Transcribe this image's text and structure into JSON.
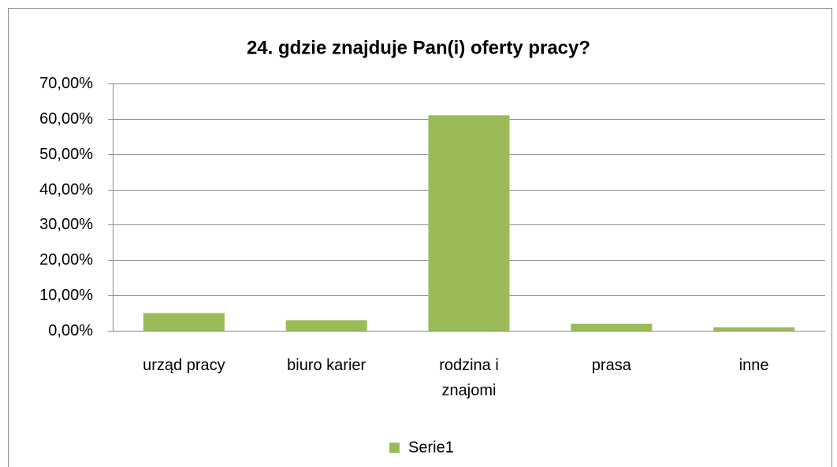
{
  "chart_data": {
    "type": "bar",
    "title": "24. gdzie znajduje Pan(i) oferty pracy?",
    "categories": [
      "urząd pracy",
      "biuro karier",
      "rodzina i znajomi",
      "prasa",
      "inne"
    ],
    "series": [
      {
        "name": "Serie1",
        "color": "#9bbb59",
        "values": [
          5,
          3,
          61,
          2,
          1
        ]
      }
    ],
    "ylim": [
      0,
      70
    ],
    "yticks": [
      {
        "value": 0,
        "label": "0,00%"
      },
      {
        "value": 10,
        "label": "10,00%"
      },
      {
        "value": 20,
        "label": "20,00%"
      },
      {
        "value": 30,
        "label": "30,00%"
      },
      {
        "value": 40,
        "label": "40,00%"
      },
      {
        "value": 50,
        "label": "50,00%"
      },
      {
        "value": 60,
        "label": "60,00%"
      },
      {
        "value": 70,
        "label": "70,00%"
      }
    ],
    "grid": true,
    "legend": "bottom"
  }
}
